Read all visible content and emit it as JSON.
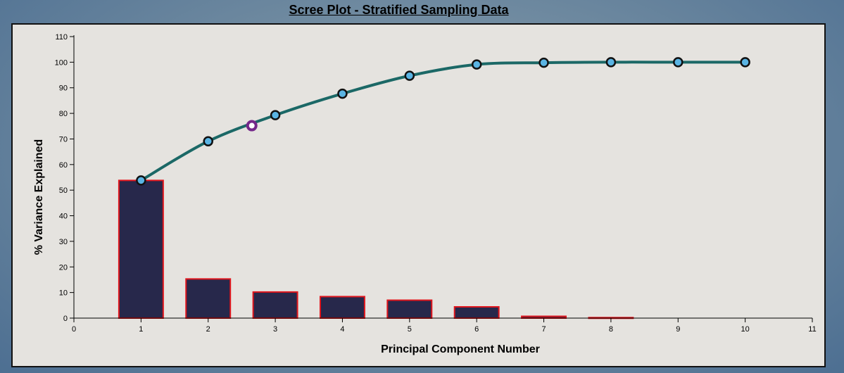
{
  "chart_data": {
    "type": "bar",
    "title": "Scree Plot - Stratified Sampling Data",
    "xlabel": "Principal Component Number",
    "ylabel": "% Variance Explained",
    "xlim": [
      0,
      11
    ],
    "ylim": [
      0,
      110
    ],
    "x_ticks": [
      "0",
      "1",
      "2",
      "3",
      "4",
      "5",
      "6",
      "7",
      "8",
      "9",
      "10",
      "11"
    ],
    "y_ticks": [
      "0",
      "10",
      "20",
      "30",
      "40",
      "50",
      "60",
      "70",
      "80",
      "90",
      "100",
      "110"
    ],
    "categories": [
      1,
      2,
      3,
      4,
      5,
      6,
      7,
      8,
      9,
      10
    ],
    "bar_values": [
      53.8,
      15.3,
      10.2,
      8.4,
      7.0,
      4.4,
      0.7,
      0.2,
      0.0,
      0.0
    ],
    "line_values": [
      53.8,
      69.1,
      79.3,
      87.7,
      94.7,
      99.1,
      99.8,
      100.0,
      100.0,
      100.0
    ],
    "highlight_point": {
      "x": 2.65,
      "y": 75.2
    },
    "grid": false,
    "colors": {
      "bar_fill": "#27284b",
      "bar_stroke": "#e0161d",
      "line": "#1b6866",
      "marker_fill": "#5ab4e3",
      "marker_stroke": "#111111",
      "highlight_stroke": "#74278a",
      "highlight_fill": "#ffffff"
    }
  }
}
